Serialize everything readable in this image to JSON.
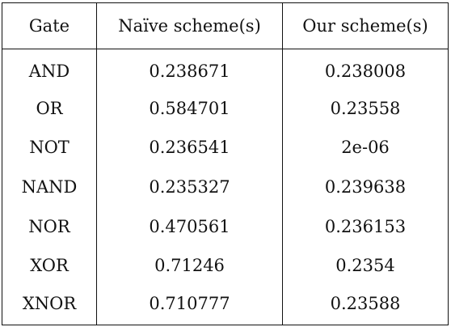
{
  "table": {
    "headers": [
      "Gate",
      "Naïve scheme(s)",
      "Our scheme(s)"
    ],
    "rows": [
      [
        "AND",
        "0.238671",
        "0.238008"
      ],
      [
        "OR",
        "0.584701",
        "0.23558"
      ],
      [
        "NOT",
        "0.236541",
        "2e-06"
      ],
      [
        "NAND",
        "0.235327",
        "0.239638"
      ],
      [
        "NOR",
        "0.470561",
        "0.236153"
      ],
      [
        "XOR",
        "0.71246",
        "0.2354"
      ],
      [
        "XNOR",
        "0.710777",
        "0.23588"
      ]
    ]
  }
}
